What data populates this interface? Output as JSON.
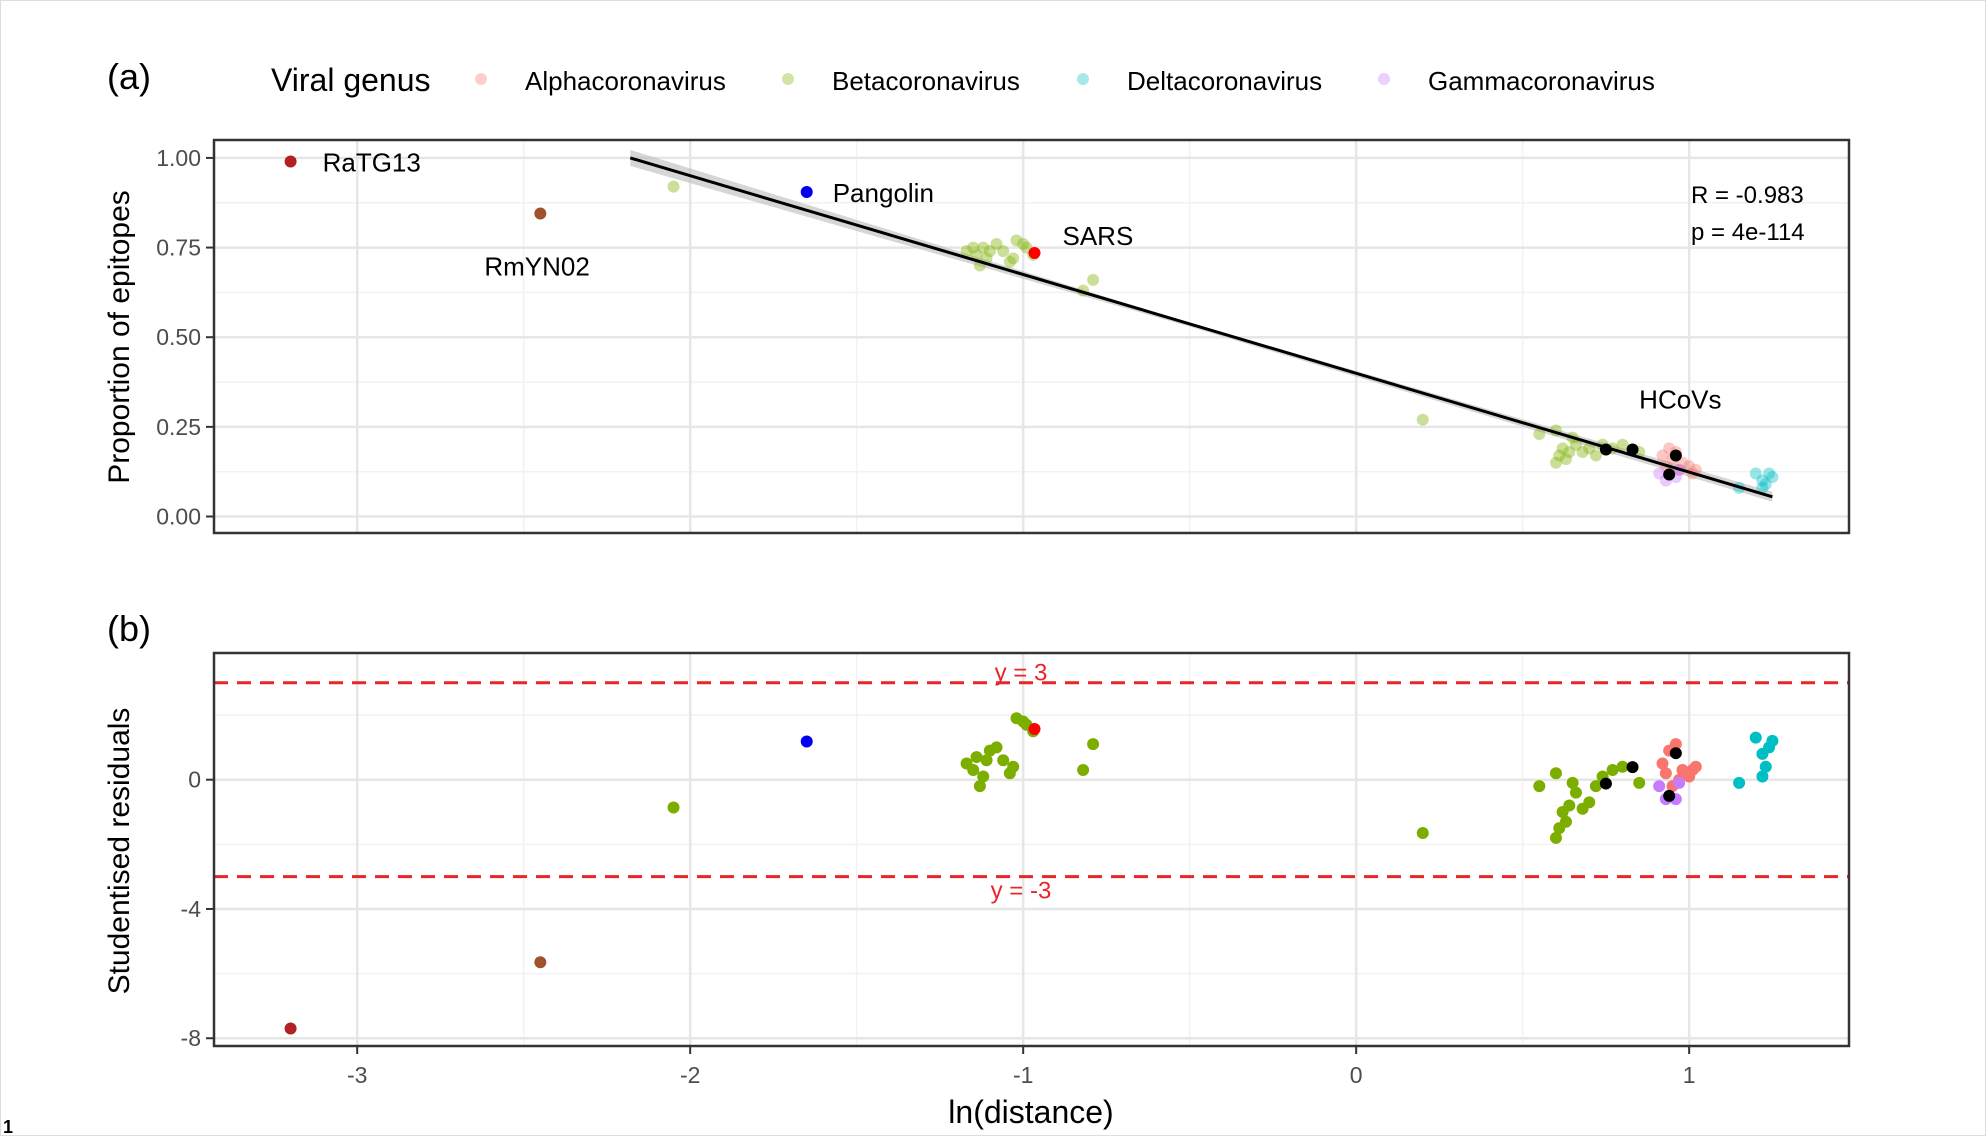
{
  "legend": {
    "title": "Viral genus",
    "items": [
      {
        "label": "Alphacoronavirus",
        "color": "#F8766D"
      },
      {
        "label": "Betacoronavirus",
        "color": "#7CAE00"
      },
      {
        "label": "Deltacoronavirus",
        "color": "#00BFC4"
      },
      {
        "label": "Gammacoronavirus",
        "color": "#C77CFF"
      }
    ]
  },
  "footnote": "1",
  "chart_data": [
    {
      "panel": "(a)",
      "type": "scatter",
      "xlabel": "",
      "ylabel": "Proportion of epitopes",
      "xlim": [
        -3.43,
        1.48
      ],
      "ylim": [
        -0.046,
        1.05
      ],
      "xticks": [
        -3,
        -2,
        -1,
        0,
        1
      ],
      "yticks": [
        "0.00",
        "0.25",
        "0.50",
        "0.75",
        "1.00"
      ],
      "grid": true,
      "regression_line": {
        "from": [
          -2.18,
          1.0
        ],
        "to": [
          1.25,
          0.055
        ],
        "color": "#000000"
      },
      "stats": [
        "R = -0.983",
        "p = 4e-114"
      ],
      "labels": [
        {
          "text": "RaTG13",
          "x": -3.2,
          "y": 0.99
        },
        {
          "text": "RmYN02",
          "x": -2.45,
          "y": 0.845
        },
        {
          "text": "Pangolin",
          "x": -1.65,
          "y": 0.905
        },
        {
          "text": "SARS",
          "x": -0.966,
          "y": 0.735
        },
        {
          "text": "HCoVs",
          "x": 0.94,
          "y": 0.19
        }
      ]
    },
    {
      "panel": "(b)",
      "type": "scatter",
      "xlabel": "ln(distance)",
      "ylabel": "Studentised residuals",
      "xlim": [
        -3.43,
        1.48
      ],
      "ylim": [
        -8.24,
        3.92
      ],
      "xticks": [
        -3,
        -2,
        -1,
        0,
        1
      ],
      "yticks": [
        "-8",
        "-4",
        "0"
      ],
      "grid": true,
      "hlines": [
        {
          "y": 3,
          "label": "y = 3",
          "color": "#e8252a"
        },
        {
          "y": -3,
          "label": "y = -3",
          "color": "#e8252a"
        }
      ]
    }
  ],
  "points": {
    "columns": [
      "ln_distance",
      "proportion_of_epitopes",
      "studentised_residual",
      "group"
    ],
    "special_colors": {
      "RaTG13": "#b22222",
      "RmYN02": "#a0522d",
      "Pangolin": "#0000ee",
      "SARS": "#ff0000",
      "HCoV": "#000000"
    },
    "rows": [
      [
        -3.2,
        0.99,
        -7.7,
        "RaTG13"
      ],
      [
        -2.45,
        0.845,
        -5.65,
        "RmYN02"
      ],
      [
        -1.65,
        0.905,
        1.18,
        "Pangolin"
      ],
      [
        -2.05,
        0.92,
        -0.86,
        "Betacoronavirus"
      ],
      [
        0.2,
        0.27,
        -1.65,
        "Betacoronavirus"
      ],
      [
        -1.17,
        0.74,
        0.5,
        "Betacoronavirus"
      ],
      [
        -1.15,
        0.75,
        0.3,
        "Betacoronavirus"
      ],
      [
        -1.14,
        0.73,
        0.7,
        "Betacoronavirus"
      ],
      [
        -1.13,
        0.7,
        -0.2,
        "Betacoronavirus"
      ],
      [
        -1.12,
        0.75,
        0.1,
        "Betacoronavirus"
      ],
      [
        -1.1,
        0.74,
        0.9,
        "Betacoronavirus"
      ],
      [
        -1.08,
        0.76,
        1.0,
        "Betacoronavirus"
      ],
      [
        -1.06,
        0.74,
        0.6,
        "Betacoronavirus"
      ],
      [
        -1.03,
        0.72,
        0.4,
        "Betacoronavirus"
      ],
      [
        -1.02,
        0.77,
        1.9,
        "Betacoronavirus"
      ],
      [
        -1.0,
        0.76,
        1.8,
        "Betacoronavirus"
      ],
      [
        -0.99,
        0.75,
        1.7,
        "Betacoronavirus"
      ],
      [
        -0.97,
        0.73,
        1.5,
        "Betacoronavirus"
      ],
      [
        -1.04,
        0.71,
        0.2,
        "Betacoronavirus"
      ],
      [
        -1.11,
        0.72,
        0.6,
        "Betacoronavirus"
      ],
      [
        -0.82,
        0.63,
        0.3,
        "Betacoronavirus"
      ],
      [
        -0.79,
        0.66,
        1.1,
        "Betacoronavirus"
      ],
      [
        0.55,
        0.23,
        -0.2,
        "Betacoronavirus"
      ],
      [
        0.6,
        0.24,
        0.2,
        "Betacoronavirus"
      ],
      [
        0.6,
        0.15,
        -1.8,
        "Betacoronavirus"
      ],
      [
        0.61,
        0.17,
        -1.5,
        "Betacoronavirus"
      ],
      [
        0.62,
        0.19,
        -1.0,
        "Betacoronavirus"
      ],
      [
        0.64,
        0.18,
        -0.8,
        "Betacoronavirus"
      ],
      [
        0.66,
        0.2,
        -0.4,
        "Betacoronavirus"
      ],
      [
        0.68,
        0.18,
        -0.9,
        "Betacoronavirus"
      ],
      [
        0.7,
        0.19,
        -0.7,
        "Betacoronavirus"
      ],
      [
        0.72,
        0.17,
        -0.2,
        "Betacoronavirus"
      ],
      [
        0.74,
        0.2,
        0.1,
        "Betacoronavirus"
      ],
      [
        0.77,
        0.19,
        0.3,
        "Betacoronavirus"
      ],
      [
        0.8,
        0.2,
        0.4,
        "Betacoronavirus"
      ],
      [
        0.85,
        0.18,
        -0.1,
        "Betacoronavirus"
      ],
      [
        0.63,
        0.16,
        -1.3,
        "Betacoronavirus"
      ],
      [
        0.65,
        0.22,
        -0.1,
        "Betacoronavirus"
      ],
      [
        -0.966,
        0.735,
        1.57,
        "SARS"
      ],
      [
        0.92,
        0.17,
        0.5,
        "Alphacoronavirus"
      ],
      [
        0.94,
        0.19,
        0.9,
        "Alphacoronavirus"
      ],
      [
        0.96,
        0.18,
        1.1,
        "Alphacoronavirus"
      ],
      [
        0.98,
        0.15,
        0.3,
        "Alphacoronavirus"
      ],
      [
        1.0,
        0.14,
        0.1,
        "Alphacoronavirus"
      ],
      [
        1.02,
        0.13,
        0.4,
        "Alphacoronavirus"
      ],
      [
        0.95,
        0.16,
        -0.2,
        "Alphacoronavirus"
      ],
      [
        0.97,
        0.13,
        0.0,
        "Alphacoronavirus"
      ],
      [
        1.01,
        0.12,
        0.3,
        "Alphacoronavirus"
      ],
      [
        0.93,
        0.14,
        0.2,
        "Alphacoronavirus"
      ],
      [
        0.91,
        0.12,
        -0.2,
        "Gammacoronavirus"
      ],
      [
        0.93,
        0.1,
        -0.6,
        "Gammacoronavirus"
      ],
      [
        0.96,
        0.11,
        -0.6,
        "Gammacoronavirus"
      ],
      [
        0.97,
        0.13,
        -0.1,
        "Gammacoronavirus"
      ],
      [
        1.15,
        0.08,
        -0.1,
        "Deltacoronavirus"
      ],
      [
        1.2,
        0.12,
        1.3,
        "Deltacoronavirus"
      ],
      [
        1.22,
        0.1,
        0.8,
        "Deltacoronavirus"
      ],
      [
        1.23,
        0.09,
        0.4,
        "Deltacoronavirus"
      ],
      [
        1.25,
        0.11,
        1.2,
        "Deltacoronavirus"
      ],
      [
        1.24,
        0.12,
        1.0,
        "Deltacoronavirus"
      ],
      [
        1.22,
        0.08,
        0.1,
        "Deltacoronavirus"
      ],
      [
        0.75,
        0.187,
        -0.12,
        "HCoV"
      ],
      [
        0.83,
        0.187,
        0.39,
        "HCoV"
      ],
      [
        0.96,
        0.17,
        0.82,
        "HCoV"
      ],
      [
        0.94,
        0.117,
        -0.5,
        "HCoV"
      ]
    ]
  }
}
